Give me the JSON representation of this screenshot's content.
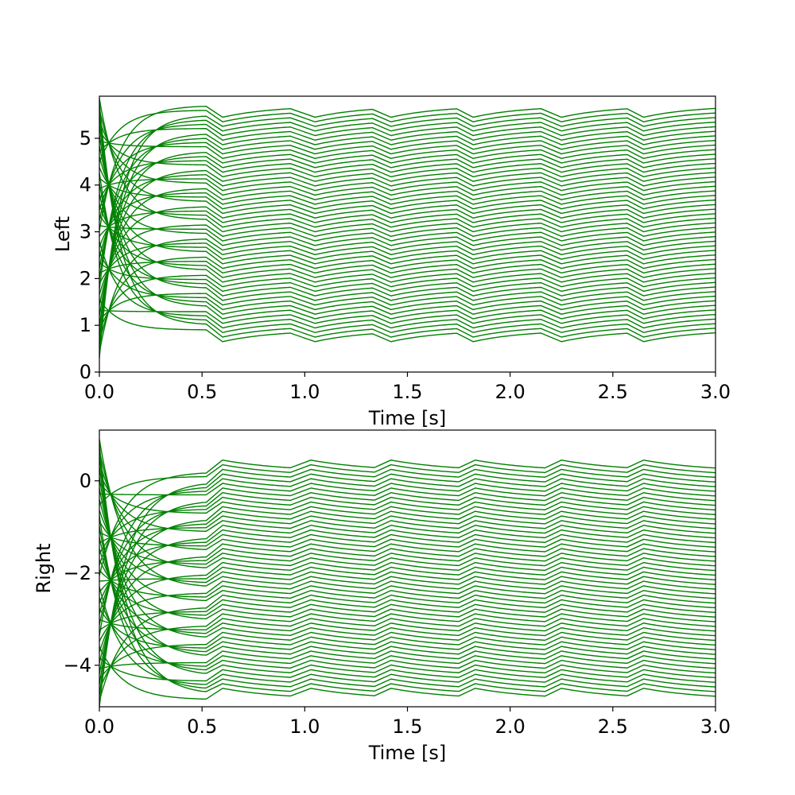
{
  "chart_data": [
    {
      "type": "line",
      "title": "",
      "xlabel": "Time [s]",
      "ylabel": "Left",
      "xlim": [
        0,
        3.0
      ],
      "ylim": [
        0,
        5.9
      ],
      "xticks": [
        0.0,
        0.5,
        1.0,
        1.5,
        2.0,
        2.5,
        3.0
      ],
      "xtick_labels": [
        "0.0",
        "0.5",
        "1.0",
        "1.5",
        "2.0",
        "2.5",
        "3.0"
      ],
      "yticks": [
        0,
        1,
        2,
        3,
        4,
        5
      ],
      "ytick_labels": [
        "0",
        "1",
        "2",
        "3",
        "4",
        "5"
      ],
      "grid": false,
      "legend": "none",
      "line_color": "#008000",
      "series_count": 50,
      "steady_state_range": [
        0.9,
        5.7
      ],
      "steady_state_reached_at": 0.5,
      "initial_value_range": [
        0.3,
        5.85
      ],
      "initial_time_constant": 0.1,
      "time_constant": 0.25,
      "dip_direction": "down",
      "dip_amplitude": 0.25,
      "events": [
        {
          "start": 0.52,
          "end": 0.6
        },
        {
          "start": 0.93,
          "end": 1.05
        },
        {
          "start": 1.33,
          "end": 1.42
        },
        {
          "start": 1.74,
          "end": 1.82
        },
        {
          "start": 2.15,
          "end": 2.25
        },
        {
          "start": 2.57,
          "end": 2.65
        }
      ]
    },
    {
      "type": "line",
      "title": "",
      "xlabel": "Time [s]",
      "ylabel": "Right",
      "xlim": [
        0,
        3.0
      ],
      "ylim": [
        -4.9,
        1.1
      ],
      "xticks": [
        0.0,
        0.5,
        1.0,
        1.5,
        2.0,
        2.5,
        3.0
      ],
      "xtick_labels": [
        "0.0",
        "0.5",
        "1.0",
        "1.5",
        "2.0",
        "2.5",
        "3.0"
      ],
      "yticks": [
        0,
        -2,
        -4
      ],
      "ytick_labels": [
        "0",
        "−2",
        "−4"
      ],
      "grid": false,
      "legend": "none",
      "line_color": "#008000",
      "series_count": 50,
      "steady_state_range": [
        -4.75,
        0.2
      ],
      "steady_state_reached_at": 0.5,
      "initial_value_range": [
        -4.9,
        0.9
      ],
      "initial_time_constant": 0.12,
      "time_constant": 0.3,
      "dip_direction": "up",
      "dip_amplitude": 0.25,
      "events": [
        {
          "start": 0.52,
          "end": 0.6
        },
        {
          "start": 0.93,
          "end": 1.03
        },
        {
          "start": 1.34,
          "end": 1.42
        },
        {
          "start": 1.75,
          "end": 1.83
        },
        {
          "start": 2.17,
          "end": 2.25
        },
        {
          "start": 2.57,
          "end": 2.65
        }
      ]
    }
  ]
}
